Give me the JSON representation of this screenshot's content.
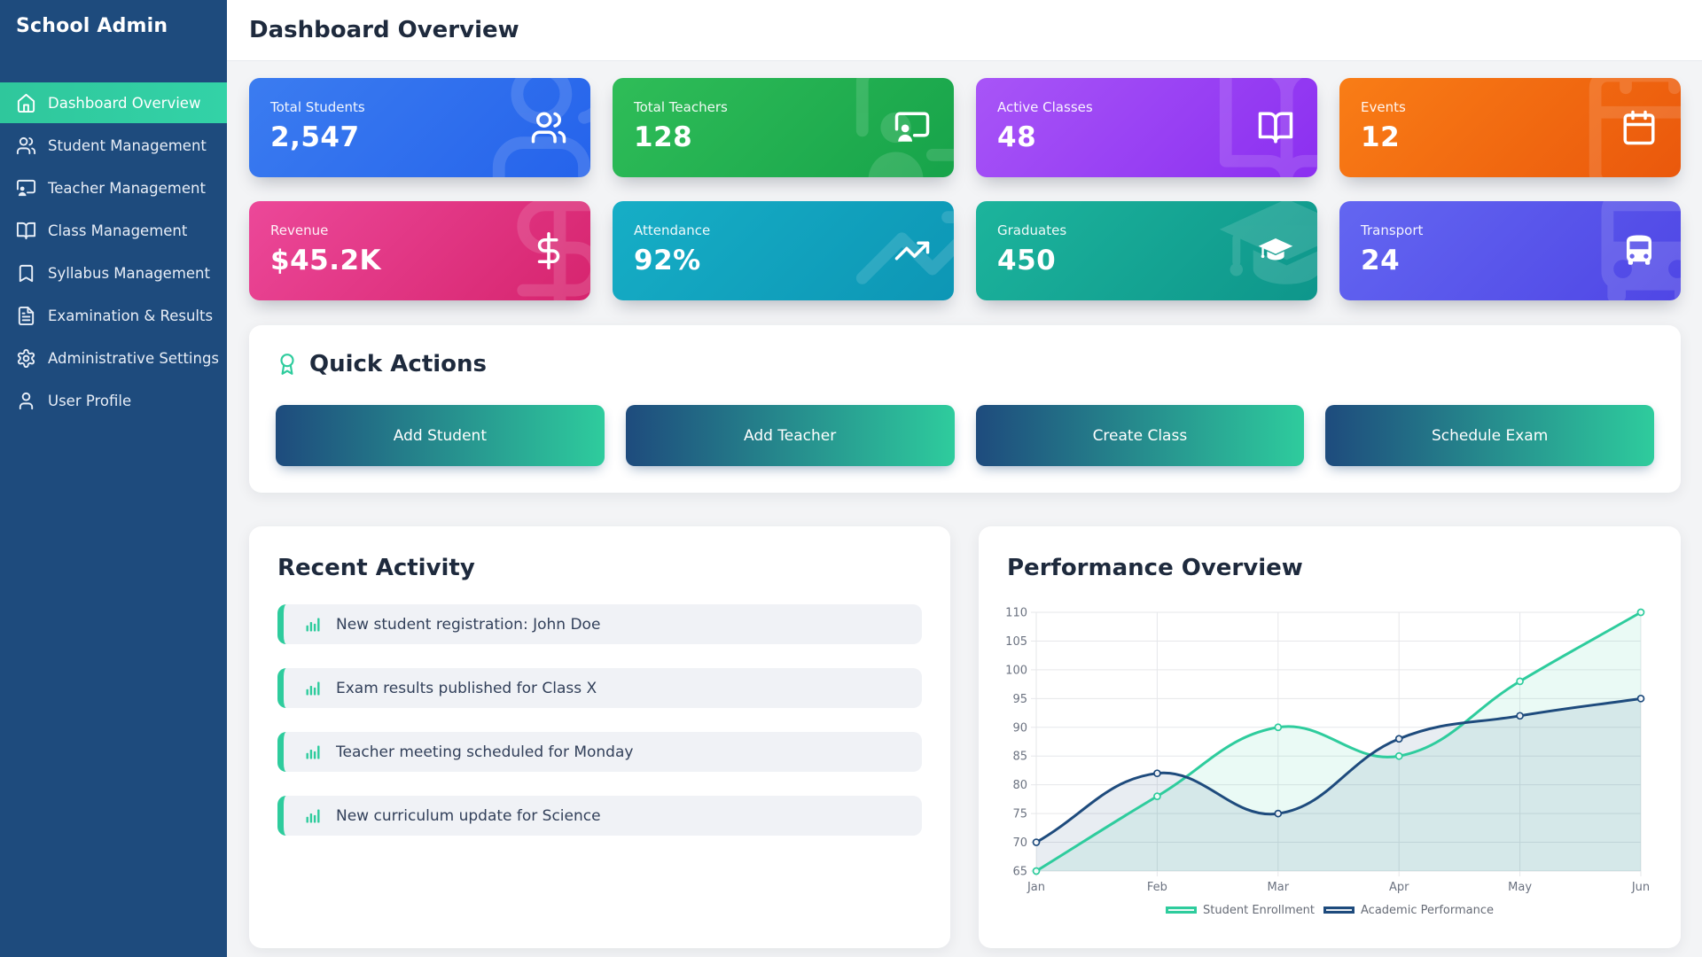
{
  "app": {
    "brand": "School Admin"
  },
  "sidebar": {
    "items": [
      {
        "label": "Dashboard Overview",
        "icon": "home",
        "active": true
      },
      {
        "label": "Student Management",
        "icon": "users",
        "active": false
      },
      {
        "label": "Teacher Management",
        "icon": "teacher",
        "active": false
      },
      {
        "label": "Class Management",
        "icon": "book-open",
        "active": false
      },
      {
        "label": "Syllabus Management",
        "icon": "bookmark",
        "active": false
      },
      {
        "label": "Examination & Results",
        "icon": "file-text",
        "active": false
      },
      {
        "label": "Administrative Settings",
        "icon": "settings",
        "active": false
      },
      {
        "label": "User Profile",
        "icon": "user",
        "active": false
      }
    ]
  },
  "header": {
    "title": "Dashboard Overview"
  },
  "stats": {
    "cards": [
      {
        "label": "Total Students",
        "value": "2,547",
        "icon": "users",
        "color_from": "#3b7cf0",
        "color_to": "#2563eb"
      },
      {
        "label": "Total Teachers",
        "value": "128",
        "icon": "teacher",
        "color_from": "#2fbd58",
        "color_to": "#17a34a"
      },
      {
        "label": "Active Classes",
        "value": "48",
        "icon": "book-open",
        "color_from": "#a855f7",
        "color_to": "#8b2ff0"
      },
      {
        "label": "Events",
        "value": "12",
        "icon": "calendar",
        "color_from": "#f97d16",
        "color_to": "#ea580c"
      },
      {
        "label": "Revenue",
        "value": "$45.2K",
        "icon": "dollar",
        "color_from": "#ec4899",
        "color_to": "#d6246e"
      },
      {
        "label": "Attendance",
        "value": "92%",
        "icon": "trending-up",
        "color_from": "#16aec6",
        "color_to": "#0d96b5"
      },
      {
        "label": "Graduates",
        "value": "450",
        "icon": "graduation-cap",
        "color_from": "#1cb49c",
        "color_to": "#0e968b"
      },
      {
        "label": "Transport",
        "value": "24",
        "icon": "bus",
        "color_from": "#6366f1",
        "color_to": "#4f46e5"
      }
    ]
  },
  "quick_actions": {
    "title": "Quick Actions",
    "icon": "award",
    "buttons": [
      {
        "label": "Add Student"
      },
      {
        "label": "Add Teacher"
      },
      {
        "label": "Create Class"
      },
      {
        "label": "Schedule Exam"
      }
    ]
  },
  "recent_activity": {
    "title": "Recent Activity",
    "items": [
      {
        "icon": "bar-chart",
        "text": "New student registration: John Doe"
      },
      {
        "icon": "bar-chart",
        "text": "Exam results published for Class X"
      },
      {
        "icon": "bar-chart",
        "text": "Teacher meeting scheduled for Monday"
      },
      {
        "icon": "bar-chart",
        "text": "New curriculum update for Science"
      }
    ]
  },
  "performance": {
    "title": "Performance Overview"
  },
  "chart_data": {
    "type": "line",
    "title": "Performance Overview",
    "x": [
      "Jan",
      "Feb",
      "Mar",
      "Apr",
      "May",
      "Jun"
    ],
    "series": [
      {
        "name": "Student Enrollment",
        "values": [
          65,
          78,
          90,
          85,
          98,
          110
        ],
        "color": "#2ecc9d",
        "fill": "rgba(46,204,157,0.10)"
      },
      {
        "name": "Academic Performance",
        "values": [
          70,
          82,
          75,
          88,
          92,
          95
        ],
        "color": "#1e4b7d",
        "fill": "rgba(30,75,125,0.10)"
      }
    ],
    "ylim": [
      65,
      110
    ],
    "ytick_step": 5,
    "grid": true,
    "legend_position": "bottom",
    "line_tension": 0.4
  }
}
